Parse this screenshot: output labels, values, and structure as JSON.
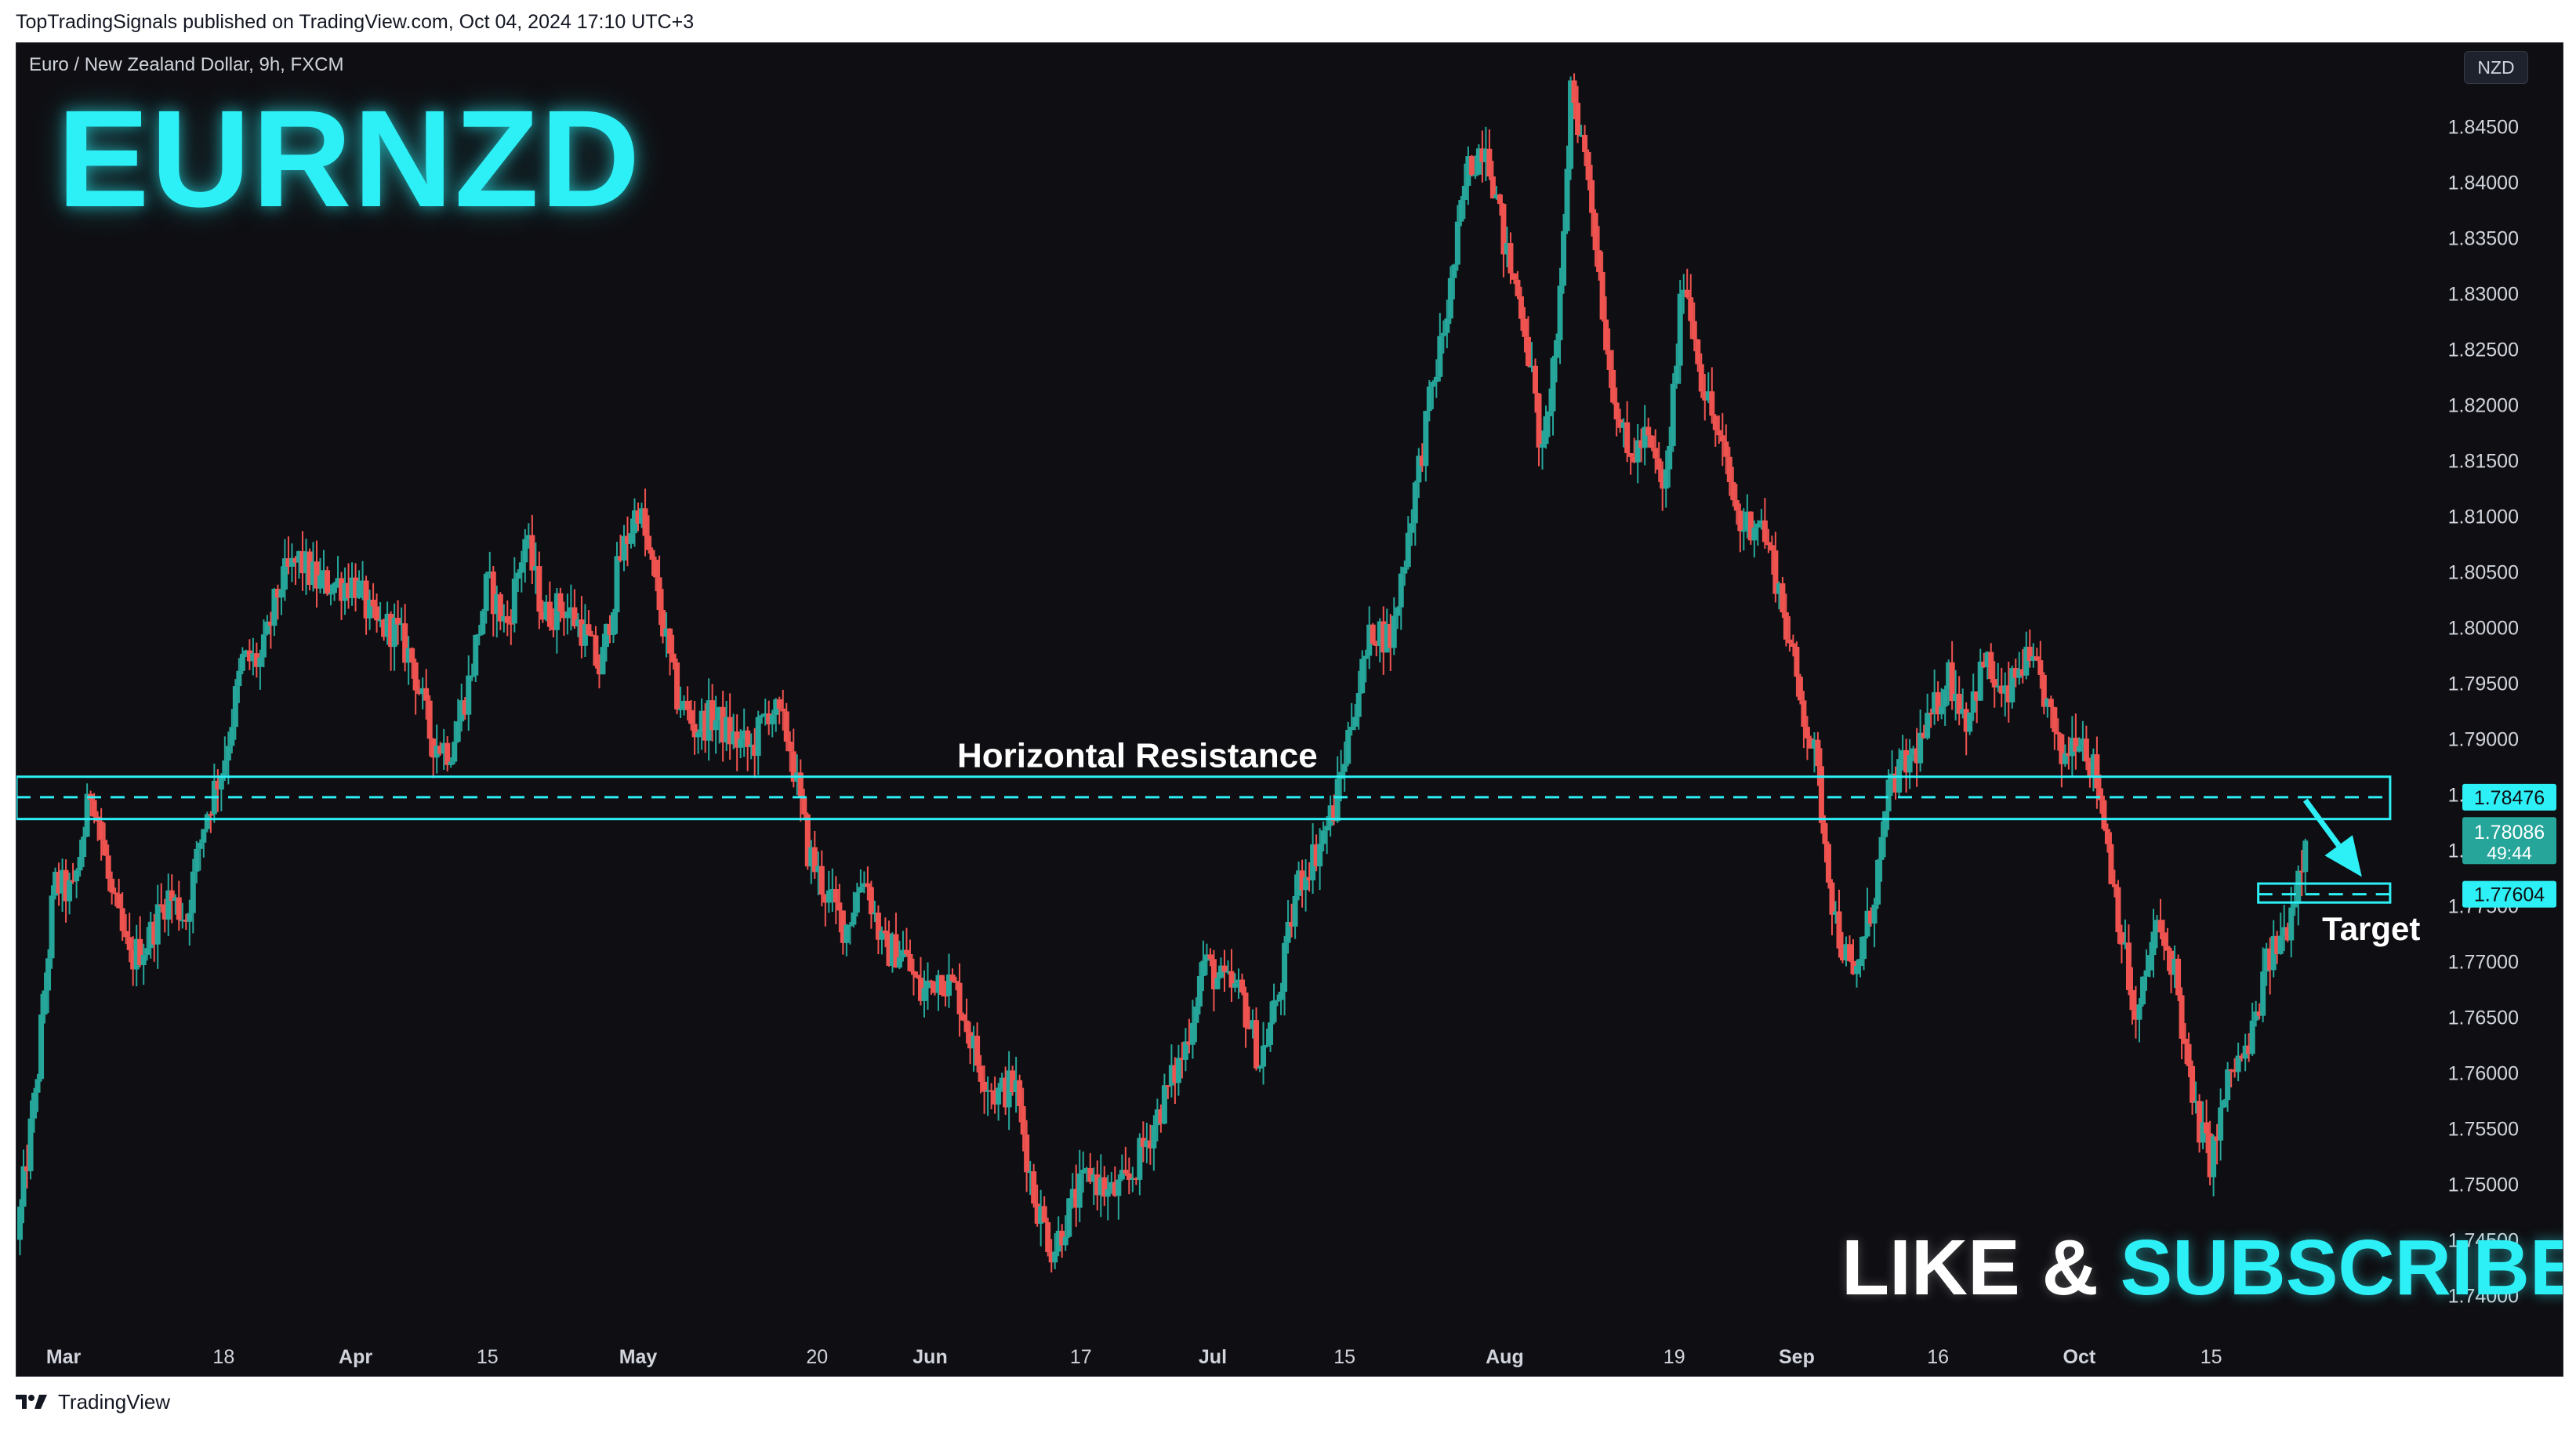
{
  "header": {
    "publish_line": "TopTradingSignals published on TradingView.com, Oct 04, 2024 17:10 UTC+3"
  },
  "chart": {
    "symbol_line": "Euro / New Zealand Dollar, 9h, FXCM",
    "currency_badge": "NZD",
    "title_overlay": "EURNZD",
    "like_word": "LIKE &",
    "subscribe_word": "SUBSCRIBE",
    "colors": {
      "background": "#0f0f13",
      "bull": "#26a69a",
      "bear": "#ef5350",
      "accent": "#2df0f6",
      "current_price_bg": "#26a69a"
    }
  },
  "chart_data": {
    "type": "candlestick",
    "title": "EURNZD",
    "timeframe": "9h",
    "ylim": [
      1.737,
      1.8525
    ],
    "y_ticks": [
      "1.74000",
      "1.74500",
      "1.75000",
      "1.75500",
      "1.76000",
      "1.76500",
      "1.77000",
      "1.77500",
      "1.78000",
      "1.78500",
      "1.79000",
      "1.79500",
      "1.80000",
      "1.80500",
      "1.81000",
      "1.81500",
      "1.82000",
      "1.82500",
      "1.83000",
      "1.83500",
      "1.84000",
      "1.84500"
    ],
    "x_ticks": [
      {
        "label": "Mar",
        "day": 61
      },
      {
        "label": "18",
        "day": 78
      },
      {
        "label": "Apr",
        "day": 92
      },
      {
        "label": "15",
        "day": 106
      },
      {
        "label": "May",
        "day": 122
      },
      {
        "label": "20",
        "day": 141
      },
      {
        "label": "Jun",
        "day": 153
      },
      {
        "label": "17",
        "day": 169
      },
      {
        "label": "Jul",
        "day": 183
      },
      {
        "label": "15",
        "day": 197
      },
      {
        "label": "Aug",
        "day": 214
      },
      {
        "label": "19",
        "day": 232
      },
      {
        "label": "Sep",
        "day": 245
      },
      {
        "label": "16",
        "day": 260
      },
      {
        "label": "Oct",
        "day": 275
      },
      {
        "label": "15",
        "day": 289
      }
    ],
    "x_range_days": [
      56,
      315
    ],
    "price_path": [
      {
        "day": 56,
        "price": 1.745
      },
      {
        "day": 58,
        "price": 1.758
      },
      {
        "day": 60,
        "price": 1.777
      },
      {
        "day": 62,
        "price": 1.776
      },
      {
        "day": 64,
        "price": 1.786
      },
      {
        "day": 66,
        "price": 1.776
      },
      {
        "day": 68,
        "price": 1.77
      },
      {
        "day": 70,
        "price": 1.772
      },
      {
        "day": 72,
        "price": 1.776
      },
      {
        "day": 74,
        "price": 1.774
      },
      {
        "day": 76,
        "price": 1.783
      },
      {
        "day": 78,
        "price": 1.788
      },
      {
        "day": 80,
        "price": 1.797
      },
      {
        "day": 82,
        "price": 1.797
      },
      {
        "day": 84,
        "price": 1.804
      },
      {
        "day": 86,
        "price": 1.806
      },
      {
        "day": 88,
        "price": 1.804
      },
      {
        "day": 90,
        "price": 1.804
      },
      {
        "day": 92,
        "price": 1.804
      },
      {
        "day": 94,
        "price": 1.8
      },
      {
        "day": 96,
        "price": 1.8
      },
      {
        "day": 98,
        "price": 1.797
      },
      {
        "day": 100,
        "price": 1.79
      },
      {
        "day": 102,
        "price": 1.789
      },
      {
        "day": 104,
        "price": 1.795
      },
      {
        "day": 106,
        "price": 1.804
      },
      {
        "day": 108,
        "price": 1.8
      },
      {
        "day": 110,
        "price": 1.808
      },
      {
        "day": 112,
        "price": 1.801
      },
      {
        "day": 114,
        "price": 1.802
      },
      {
        "day": 116,
        "price": 1.8
      },
      {
        "day": 118,
        "price": 1.796
      },
      {
        "day": 120,
        "price": 1.806
      },
      {
        "day": 122,
        "price": 1.811
      },
      {
        "day": 124,
        "price": 1.803
      },
      {
        "day": 126,
        "price": 1.794
      },
      {
        "day": 128,
        "price": 1.791
      },
      {
        "day": 130,
        "price": 1.792
      },
      {
        "day": 132,
        "price": 1.79
      },
      {
        "day": 134,
        "price": 1.789
      },
      {
        "day": 136,
        "price": 1.793
      },
      {
        "day": 138,
        "price": 1.79
      },
      {
        "day": 140,
        "price": 1.78
      },
      {
        "day": 142,
        "price": 1.776
      },
      {
        "day": 144,
        "price": 1.773
      },
      {
        "day": 146,
        "price": 1.778
      },
      {
        "day": 148,
        "price": 1.771
      },
      {
        "day": 150,
        "price": 1.771
      },
      {
        "day": 152,
        "price": 1.767
      },
      {
        "day": 154,
        "price": 1.769
      },
      {
        "day": 156,
        "price": 1.767
      },
      {
        "day": 158,
        "price": 1.761
      },
      {
        "day": 160,
        "price": 1.758
      },
      {
        "day": 162,
        "price": 1.759
      },
      {
        "day": 164,
        "price": 1.749
      },
      {
        "day": 166,
        "price": 1.744
      },
      {
        "day": 168,
        "price": 1.748
      },
      {
        "day": 170,
        "price": 1.751
      },
      {
        "day": 172,
        "price": 1.749
      },
      {
        "day": 174,
        "price": 1.75
      },
      {
        "day": 176,
        "price": 1.754
      },
      {
        "day": 178,
        "price": 1.758
      },
      {
        "day": 180,
        "price": 1.762
      },
      {
        "day": 182,
        "price": 1.77
      },
      {
        "day": 184,
        "price": 1.768
      },
      {
        "day": 186,
        "price": 1.767
      },
      {
        "day": 188,
        "price": 1.761
      },
      {
        "day": 190,
        "price": 1.767
      },
      {
        "day": 192,
        "price": 1.777
      },
      {
        "day": 194,
        "price": 1.78
      },
      {
        "day": 196,
        "price": 1.784
      },
      {
        "day": 198,
        "price": 1.793
      },
      {
        "day": 200,
        "price": 1.8
      },
      {
        "day": 202,
        "price": 1.799
      },
      {
        "day": 204,
        "price": 1.81
      },
      {
        "day": 206,
        "price": 1.82
      },
      {
        "day": 208,
        "price": 1.829
      },
      {
        "day": 210,
        "price": 1.841
      },
      {
        "day": 212,
        "price": 1.844
      },
      {
        "day": 214,
        "price": 1.834
      },
      {
        "day": 216,
        "price": 1.828
      },
      {
        "day": 218,
        "price": 1.815
      },
      {
        "day": 220,
        "price": 1.83
      },
      {
        "day": 221,
        "price": 1.849
      },
      {
        "day": 223,
        "price": 1.84
      },
      {
        "day": 225,
        "price": 1.824
      },
      {
        "day": 227,
        "price": 1.815
      },
      {
        "day": 229,
        "price": 1.817
      },
      {
        "day": 231,
        "price": 1.812
      },
      {
        "day": 233,
        "price": 1.832
      },
      {
        "day": 235,
        "price": 1.822
      },
      {
        "day": 237,
        "price": 1.816
      },
      {
        "day": 239,
        "price": 1.809
      },
      {
        "day": 241,
        "price": 1.81
      },
      {
        "day": 243,
        "price": 1.804
      },
      {
        "day": 245,
        "price": 1.795
      },
      {
        "day": 247,
        "price": 1.788
      },
      {
        "day": 249,
        "price": 1.774
      },
      {
        "day": 251,
        "price": 1.768
      },
      {
        "day": 253,
        "price": 1.775
      },
      {
        "day": 255,
        "price": 1.786
      },
      {
        "day": 257,
        "price": 1.788
      },
      {
        "day": 259,
        "price": 1.791
      },
      {
        "day": 261,
        "price": 1.796
      },
      {
        "day": 263,
        "price": 1.792
      },
      {
        "day": 265,
        "price": 1.797
      },
      {
        "day": 267,
        "price": 1.793
      },
      {
        "day": 269,
        "price": 1.797
      },
      {
        "day": 271,
        "price": 1.795
      },
      {
        "day": 273,
        "price": 1.788
      },
      {
        "day": 275,
        "price": 1.791
      },
      {
        "day": 277,
        "price": 1.786
      },
      {
        "day": 279,
        "price": 1.775
      },
      {
        "day": 281,
        "price": 1.764
      },
      {
        "day": 283,
        "price": 1.773
      },
      {
        "day": 285,
        "price": 1.77
      },
      {
        "day": 287,
        "price": 1.757
      },
      {
        "day": 289,
        "price": 1.752
      },
      {
        "day": 291,
        "price": 1.76
      },
      {
        "day": 293,
        "price": 1.762
      },
      {
        "day": 295,
        "price": 1.77
      },
      {
        "day": 297,
        "price": 1.773
      },
      {
        "day": 299,
        "price": 1.781
      }
    ],
    "annotations": {
      "resistance_label": "Horizontal Resistance",
      "resistance_level": 1.78476,
      "resistance_zone": [
        1.7828,
        1.7866
      ],
      "resistance_day_range": [
        56,
        308
      ],
      "target_label": "Target",
      "target_level": 1.77604,
      "target_zone": [
        1.7753,
        1.777
      ],
      "target_day_range": [
        294,
        308
      ],
      "arrow_from": {
        "day": 299,
        "price": 1.7845
      },
      "arrow_to": {
        "day": 305,
        "price": 1.7776
      }
    },
    "price_labels": {
      "resistance": "1.78476",
      "current_price": "1.78086",
      "current_price_level": 1.78086,
      "countdown": "49:44",
      "target": "1.77604"
    }
  },
  "footer": {
    "brand": "TradingView",
    "logo_icon": "tradingview-logo-icon"
  }
}
